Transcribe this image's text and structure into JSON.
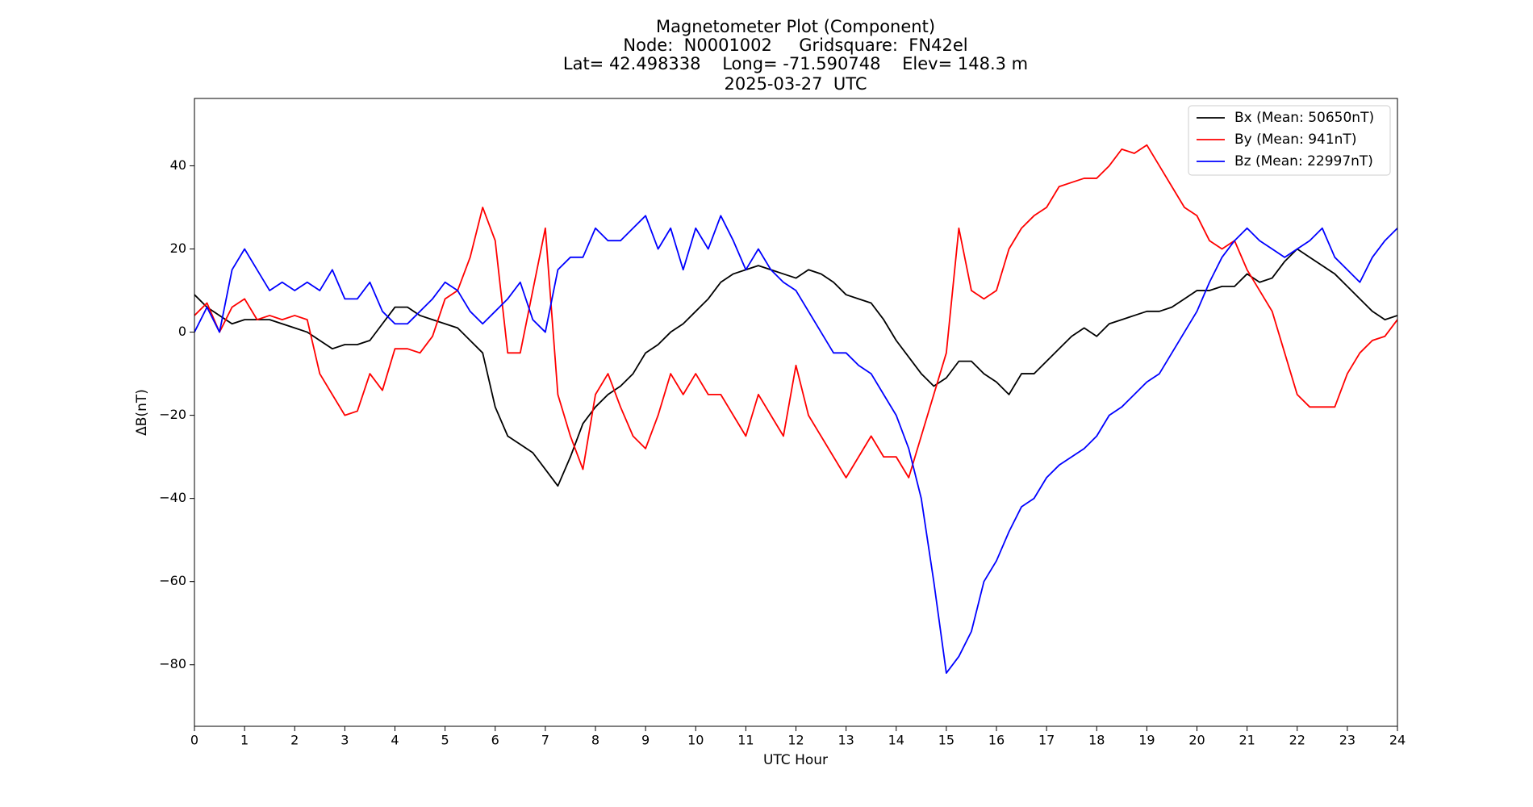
{
  "chart_data": {
    "type": "line",
    "title": [
      "Magnetometer Plot (Component)",
      "Node:  N0001002     Gridsquare:  FN42el",
      "Lat= 42.498338    Long= -71.590748    Elev= 148.3 m",
      "2025-03-27  UTC"
    ],
    "xlabel": "UTC Hour",
    "ylabel": "ΔB(nT)",
    "legend": "upper right",
    "xlim": [
      0,
      24
    ],
    "xticks": [
      0,
      1,
      2,
      3,
      4,
      5,
      6,
      7,
      8,
      9,
      10,
      11,
      12,
      13,
      14,
      15,
      16,
      17,
      18,
      19,
      20,
      21,
      22,
      23,
      24
    ],
    "ylim": [
      -94.8,
      56.2
    ],
    "yticks": [
      {
        "value": -80,
        "label": "−80"
      },
      {
        "value": -60,
        "label": "−60"
      },
      {
        "value": -40,
        "label": "−40"
      },
      {
        "value": -20,
        "label": "−20"
      },
      0,
      20,
      40
    ],
    "x": [
      0,
      0.25,
      0.5,
      0.75,
      1,
      1.25,
      1.5,
      1.75,
      2,
      2.25,
      2.5,
      2.75,
      3,
      3.25,
      3.5,
      3.75,
      4,
      4.25,
      4.5,
      4.75,
      5,
      5.25,
      5.5,
      5.75,
      6,
      6.25,
      6.5,
      6.75,
      7,
      7.25,
      7.5,
      7.75,
      8,
      8.25,
      8.5,
      8.75,
      9,
      9.25,
      9.5,
      9.75,
      10,
      10.25,
      10.5,
      10.75,
      11,
      11.25,
      11.5,
      11.75,
      12,
      12.25,
      12.5,
      12.75,
      13,
      13.25,
      13.5,
      13.75,
      14,
      14.25,
      14.5,
      14.75,
      15,
      15.25,
      15.5,
      15.75,
      16,
      16.25,
      16.5,
      16.75,
      17,
      17.25,
      17.5,
      17.75,
      18,
      18.25,
      18.5,
      18.75,
      19,
      19.25,
      19.5,
      19.75,
      20,
      20.25,
      20.5,
      20.75,
      21,
      21.25,
      21.5,
      21.75,
      22,
      22.25,
      22.5,
      22.75,
      23,
      23.25,
      23.5,
      23.75,
      24
    ],
    "series": [
      {
        "name": "Bx (Mean: 50650nT)",
        "color": "#000000",
        "values": [
          9,
          6,
          4,
          2,
          3,
          3,
          3,
          2,
          1,
          0,
          -2,
          -4,
          -3,
          -3,
          -2,
          2,
          6,
          6,
          4,
          3,
          2,
          1,
          -2,
          -5,
          -18,
          -25,
          -27,
          -29,
          -33,
          -37,
          -30,
          -22,
          -18,
          -15,
          -13,
          -10,
          -5,
          -3,
          0,
          2,
          5,
          8,
          12,
          14,
          15,
          16,
          15,
          14,
          13,
          15,
          14,
          12,
          9,
          8,
          7,
          3,
          -2,
          -6,
          -10,
          -13,
          -11,
          -7,
          -7,
          -10,
          -12,
          -15,
          -10,
          -10,
          -7,
          -4,
          -1,
          1,
          -1,
          2,
          3,
          4,
          5,
          5,
          6,
          8,
          10,
          10,
          11,
          11,
          14,
          12,
          13,
          17,
          20,
          18,
          16,
          14,
          11,
          8,
          5,
          3,
          4
        ]
      },
      {
        "name": "By (Mean: 941nT)",
        "color": "#ff0000",
        "values": [
          4,
          7,
          0,
          6,
          8,
          3,
          4,
          3,
          4,
          3,
          -10,
          -15,
          -20,
          -19,
          -10,
          -14,
          -4,
          -4,
          -5,
          -1,
          8,
          10,
          18,
          30,
          22,
          -5,
          -5,
          10,
          25,
          -15,
          -25,
          -33,
          -15,
          -10,
          -18,
          -25,
          -28,
          -20,
          -10,
          -15,
          -10,
          -15,
          -15,
          -20,
          -25,
          -15,
          -20,
          -25,
          -8,
          -20,
          -25,
          -30,
          -35,
          -30,
          -25,
          -30,
          -30,
          -35,
          -25,
          -15,
          -5,
          25,
          10,
          8,
          10,
          20,
          25,
          28,
          30,
          35,
          36,
          37,
          37,
          40,
          44,
          43,
          45,
          40,
          35,
          30,
          28,
          22,
          20,
          22,
          15,
          10,
          5,
          -5,
          -15,
          -18,
          -18,
          -18,
          -10,
          -5,
          -2,
          -1,
          3
        ]
      },
      {
        "name": "Bz (Mean: 22997nT)",
        "color": "#0000ff",
        "values": [
          0,
          6,
          0,
          15,
          20,
          15,
          10,
          12,
          10,
          12,
          10,
          15,
          8,
          8,
          12,
          5,
          2,
          2,
          5,
          8,
          12,
          10,
          5,
          2,
          5,
          8,
          12,
          3,
          0,
          15,
          18,
          18,
          25,
          22,
          22,
          25,
          28,
          20,
          25,
          15,
          25,
          20,
          28,
          22,
          15,
          20,
          15,
          12,
          10,
          5,
          0,
          -5,
          -5,
          -8,
          -10,
          -15,
          -20,
          -28,
          -40,
          -60,
          -82,
          -78,
          -72,
          -60,
          -55,
          -48,
          -42,
          -40,
          -35,
          -32,
          -30,
          -28,
          -25,
          -20,
          -18,
          -15,
          -12,
          -10,
          -5,
          0,
          5,
          12,
          18,
          22,
          25,
          22,
          20,
          18,
          20,
          22,
          25,
          18,
          15,
          12,
          18,
          22,
          25
        ]
      }
    ]
  }
}
